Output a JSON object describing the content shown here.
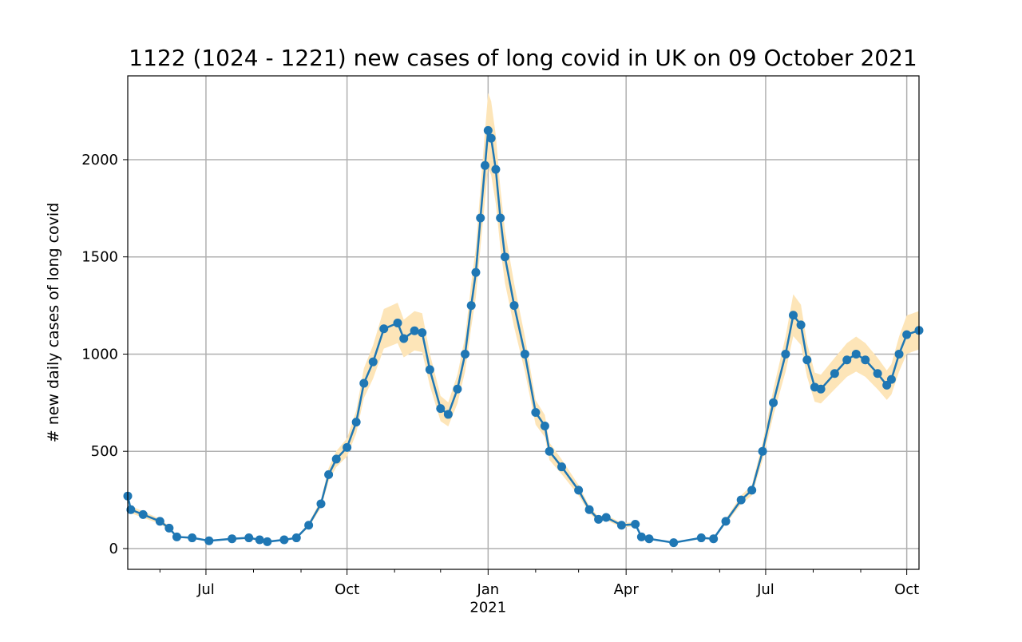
{
  "chart_data": {
    "type": "line",
    "title": "1122 (1024 - 1221) new cases of long covid in UK on 09 October 2021",
    "y_label": "# new daily cases of long covid",
    "x": [
      "2020-05-11",
      "2020-05-13",
      "2020-05-21",
      "2020-06-01",
      "2020-06-07",
      "2020-06-12",
      "2020-06-22",
      "2020-07-03",
      "2020-07-18",
      "2020-07-29",
      "2020-08-05",
      "2020-08-10",
      "2020-08-21",
      "2020-08-29",
      "2020-09-06",
      "2020-09-14",
      "2020-09-19",
      "2020-09-24",
      "2020-10-01",
      "2020-10-07",
      "2020-10-12",
      "2020-10-18",
      "2020-10-25",
      "2020-11-03",
      "2020-11-07",
      "2020-11-14",
      "2020-11-19",
      "2020-11-24",
      "2020-12-01",
      "2020-12-06",
      "2020-12-12",
      "2020-12-17",
      "2020-12-21",
      "2020-12-24",
      "2020-12-27",
      "2020-12-30",
      "2021-01-01",
      "2021-01-03",
      "2021-01-06",
      "2021-01-09",
      "2021-01-12",
      "2021-01-18",
      "2021-01-25",
      "2021-02-01",
      "2021-02-07",
      "2021-02-10",
      "2021-02-18",
      "2021-03-01",
      "2021-03-08",
      "2021-03-14",
      "2021-03-19",
      "2021-03-29",
      "2021-04-07",
      "2021-04-11",
      "2021-04-16",
      "2021-05-02",
      "2021-05-20",
      "2021-05-28",
      "2021-06-05",
      "2021-06-15",
      "2021-06-22",
      "2021-06-29",
      "2021-07-06",
      "2021-07-14",
      "2021-07-19",
      "2021-07-24",
      "2021-07-28",
      "2021-08-02",
      "2021-08-06",
      "2021-08-15",
      "2021-08-23",
      "2021-08-29",
      "2021-09-04",
      "2021-09-12",
      "2021-09-18",
      "2021-09-21",
      "2021-09-26",
      "2021-10-01",
      "2021-10-09"
    ],
    "series": [
      {
        "color": "#1f77b4",
        "values": [
          270,
          200,
          175,
          140,
          105,
          60,
          55,
          40,
          50,
          55,
          45,
          35,
          45,
          55,
          120,
          230,
          380,
          460,
          520,
          650,
          850,
          960,
          1130,
          1160,
          1080,
          1120,
          1110,
          920,
          720,
          690,
          820,
          1000,
          1250,
          1420,
          1700,
          1970,
          2150,
          2110,
          1950,
          1700,
          1500,
          1250,
          1000,
          700,
          630,
          500,
          420,
          300,
          200,
          150,
          160,
          120,
          125,
          60,
          50,
          30,
          55,
          50,
          140,
          250,
          300,
          500,
          750,
          1000,
          1200,
          1150,
          970,
          830,
          820,
          900,
          970,
          1000,
          970,
          900,
          840,
          870,
          1000,
          1100,
          1122
        ]
      }
    ],
    "band": {
      "color": "#fde5b8",
      "lower": [
        245,
        182,
        159,
        127,
        96,
        55,
        50,
        36,
        45,
        50,
        41,
        32,
        41,
        50,
        109,
        209,
        346,
        419,
        473,
        592,
        774,
        874,
        1028,
        1056,
        983,
        1019,
        1010,
        837,
        655,
        628,
        746,
        910,
        1138,
        1292,
        1547,
        1793,
        1957,
        1920,
        1775,
        1547,
        1365,
        1138,
        910,
        637,
        573,
        455,
        382,
        273,
        182,
        137,
        146,
        109,
        114,
        55,
        45,
        27,
        50,
        45,
        127,
        228,
        273,
        455,
        683,
        910,
        1092,
        1047,
        883,
        755,
        746,
        819,
        883,
        910,
        883,
        819,
        764,
        792,
        910,
        1001,
        1024
      ],
      "upper": [
        294,
        218,
        191,
        153,
        114,
        65,
        60,
        44,
        55,
        60,
        49,
        38,
        49,
        60,
        131,
        251,
        414,
        501,
        567,
        709,
        927,
        1046,
        1232,
        1264,
        1177,
        1221,
        1210,
        1003,
        785,
        752,
        894,
        1090,
        1363,
        1548,
        1853,
        2147,
        2344,
        2300,
        2126,
        1853,
        1635,
        1363,
        1090,
        763,
        687,
        545,
        458,
        327,
        218,
        164,
        174,
        131,
        136,
        65,
        55,
        33,
        60,
        55,
        153,
        273,
        327,
        545,
        818,
        1090,
        1308,
        1254,
        1057,
        905,
        894,
        981,
        1057,
        1090,
        1057,
        981,
        916,
        948,
        1090,
        1199,
        1221
      ]
    },
    "xlim": [
      "2020-05-11",
      "2021-10-09"
    ],
    "xticks": [
      {
        "value": "2020-07-01",
        "label": "Jul"
      },
      {
        "value": "2020-10-01",
        "label": "Oct"
      },
      {
        "value": "2021-01-01",
        "label": "Jan\n2021"
      },
      {
        "value": "2021-04-01",
        "label": "Apr"
      },
      {
        "value": "2021-07-01",
        "label": "Jul"
      },
      {
        "value": "2021-10-01",
        "label": "Oct"
      }
    ],
    "xminorticks": [
      "2020-06-01",
      "2020-08-01",
      "2020-09-01",
      "2020-11-01",
      "2020-12-01",
      "2021-02-01",
      "2021-03-01",
      "2021-05-01",
      "2021-06-01",
      "2021-08-01",
      "2021-09-01"
    ],
    "ylim": [
      -107,
      2431
    ],
    "yticks": [
      0,
      500,
      1000,
      1500,
      2000
    ],
    "grid": true
  }
}
